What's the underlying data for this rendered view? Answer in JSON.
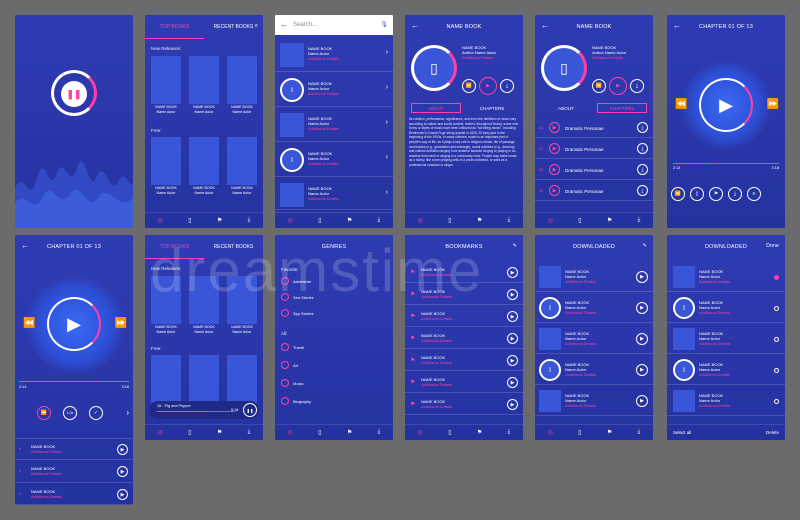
{
  "watermark": "dreamstime",
  "icons": {
    "back": "←",
    "chevron": "›",
    "play": "▶",
    "pause": "❚❚",
    "rewind": "⏪",
    "forward": "⏩",
    "search": "⌕",
    "mic": "🎙",
    "download": "⤓",
    "book": "▯",
    "grid": "◎",
    "bookmark": "⚑",
    "check": "✓",
    "menu": "≡",
    "edit": "✎"
  },
  "colors": {
    "accent": "#ff3fa6",
    "bg": "#2f3bb2",
    "card": "#3a56d8"
  },
  "lib": {
    "tab_top": "TOP BOOKS",
    "tab_recent": "RECENT BOOKS",
    "new_releases": "New Releases:",
    "free": "Free:",
    "book_name": "NAME BOOK",
    "book_author": "Name Autor"
  },
  "search": {
    "placeholder": "Search...",
    "name": "NAME BOOK",
    "author": "Name Autor",
    "extra": "Additional Details"
  },
  "detail": {
    "title": "NAME BOOK",
    "name": "NAME BOOK",
    "author": "Author Name Autor",
    "extra": "Additional Details",
    "about": "ABOUT",
    "chapters": "CHAPTERS",
    "text": "Its creation, performance, significance, and even the definition of music vary according to culture and social context. Indeed, throughout history, some new forms or styles of music have been criticized as \"not being music\", including Beethoven's Grosse Fuge string quartet in 1825, 20 early jazz in the beginning of the 1900s. In many cultures, music is an important part of people's way of life, as it plays a key role in religious rituals, rite of passage ceremonies (e.g., graduation and marriage), social activities (e.g., dancing) and cultural activities ranging from amateur karaoke singing to playing in an amateur funk band or singing in a community choir. People may make music as a hobby, like a teen playing cello in a youth orchestra, or work as a professional musician or singer.",
    "chapter_item": "Dramatic Personae",
    "chapter_nums": [
      "01",
      "02",
      "03",
      "04"
    ]
  },
  "player": {
    "title": "CHAPTER 01 OF 13",
    "t_start": "2:14",
    "t_end": "3:18",
    "speed": "1.0x"
  },
  "genres": {
    "title": "GENRES",
    "favorite": "Favorite:",
    "fav": [
      "Adventure",
      "Sea Stories",
      "Spy Stories"
    ],
    "all": "All:",
    "all_items": [
      "Travel",
      "Art",
      "Music",
      "Biography"
    ]
  },
  "bookmarks": {
    "title": "BOOKMARKS"
  },
  "downloaded": {
    "title": "DOWNLOADED",
    "done": "Done",
    "select_all": "Select all",
    "delete": "Delete"
  },
  "mini": {
    "track": "16 - Pig and Pepper",
    "time": "5:18"
  }
}
